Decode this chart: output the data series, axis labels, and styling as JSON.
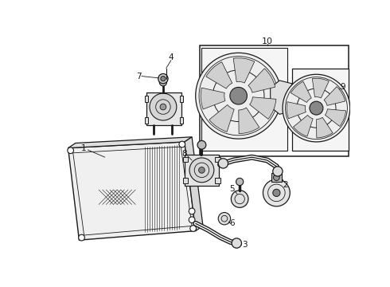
{
  "bg_color": "#ffffff",
  "lc": "#1a1a1a",
  "label_fs": 7.5,
  "figsize": [
    4.9,
    3.6
  ],
  "dpi": 100
}
